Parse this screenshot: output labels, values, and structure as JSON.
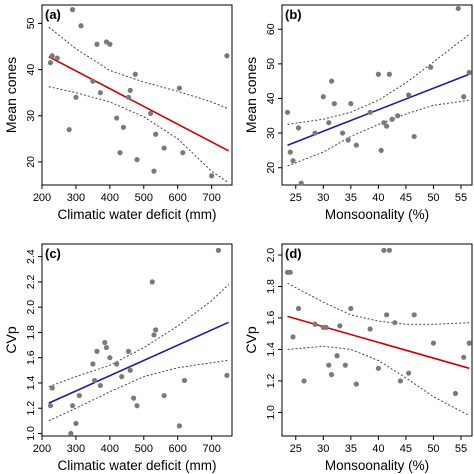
{
  "chart_data": [
    {
      "panel": "(a)",
      "type": "scatter",
      "xlabel": "Climatic water deficit (mm)",
      "ylabel": "Mean cones",
      "xlim": [
        200,
        760
      ],
      "ylim": [
        15,
        54
      ],
      "xticks": [
        200,
        300,
        400,
        500,
        600,
        700
      ],
      "yticks": [
        20,
        30,
        40,
        50
      ],
      "trend_color": "#cc0000",
      "fit": {
        "x": [
          220,
          750
        ],
        "y": [
          42.8,
          22.4
        ]
      },
      "ci_upper": {
        "x": [
          220,
          300,
          400,
          500,
          600,
          700,
          750
        ],
        "y": [
          49.2,
          44.5,
          39.8,
          37.3,
          35.3,
          33.0,
          31.5
        ]
      },
      "ci_lower": {
        "x": [
          220,
          300,
          400,
          500,
          600,
          700,
          750
        ],
        "y": [
          36.3,
          35.0,
          33.0,
          29.8,
          25.0,
          18.0,
          15.5
        ]
      },
      "points": {
        "x": [
          225,
          230,
          245,
          280,
          290,
          300,
          315,
          350,
          362,
          372,
          390,
          400,
          420,
          430,
          440,
          455,
          460,
          475,
          480,
          520,
          530,
          535,
          560,
          605,
          615,
          700,
          745
        ],
        "y": [
          41.5,
          43.0,
          42.5,
          27.0,
          53.0,
          34.0,
          49.5,
          37.5,
          45.5,
          35.0,
          46.0,
          45.5,
          29.5,
          22.0,
          27.5,
          34.0,
          35.5,
          39.0,
          20.5,
          30.5,
          18.0,
          26.0,
          23.0,
          36.0,
          22.0,
          17.0,
          43.0
        ]
      }
    },
    {
      "panel": "(b)",
      "type": "scatter",
      "xlabel": "Monsoonality (%)",
      "ylabel": "Mean cones",
      "xlim": [
        22.5,
        57
      ],
      "ylim": [
        15,
        67
      ],
      "xticks": [
        25,
        30,
        35,
        40,
        45,
        50,
        55
      ],
      "yticks": [
        20,
        30,
        40,
        50,
        60
      ],
      "trend_color": "#1a1aa8",
      "fit": {
        "x": [
          23.5,
          56.5
        ],
        "y": [
          26.5,
          47.0
        ]
      },
      "ci_upper": {
        "x": [
          23.5,
          30,
          35,
          40,
          45,
          50,
          56.5
        ],
        "y": [
          32.5,
          34.0,
          36.0,
          39.5,
          44.5,
          50.5,
          58.5
        ]
      },
      "ci_lower": {
        "x": [
          23.5,
          30,
          35,
          40,
          45,
          50,
          56.5
        ],
        "y": [
          20.5,
          24.5,
          29.0,
          32.5,
          35.5,
          38.0,
          39.5
        ]
      },
      "points": {
        "x": [
          23.5,
          24.0,
          24.5,
          25.5,
          26.0,
          28.5,
          30.0,
          31.0,
          31.5,
          32.0,
          33.5,
          34.5,
          35.0,
          36.0,
          38.5,
          40.0,
          40.5,
          41.0,
          41.5,
          42.0,
          42.5,
          43.5,
          45.5,
          46.5,
          49.5,
          54.5,
          55.5,
          56.5
        ],
        "y": [
          36.0,
          24.5,
          22.0,
          31.5,
          15.5,
          30.0,
          40.5,
          33.0,
          45.0,
          38.5,
          30.0,
          28.0,
          38.5,
          26.5,
          36.0,
          47.0,
          25.0,
          33.0,
          32.0,
          47.0,
          34.0,
          35.0,
          41.0,
          29.0,
          49.0,
          66.0,
          40.5,
          47.5
        ]
      }
    },
    {
      "panel": "(c)",
      "type": "scatter",
      "xlabel": "Climatic water deficit (mm)",
      "ylabel": "CVp",
      "xlim": [
        200,
        760
      ],
      "ylim": [
        0.98,
        2.5
      ],
      "xticks": [
        200,
        300,
        400,
        500,
        600,
        700
      ],
      "yticks": [
        1.0,
        1.2,
        1.4,
        1.6,
        1.8,
        2.0,
        2.2,
        2.4
      ],
      "ytick_labels": [
        "1.0",
        "1.2",
        "1.4",
        "1.6",
        "1.8",
        "2.0",
        "2.2",
        "2.4"
      ],
      "trend_color": "#1a1aa8",
      "fit": {
        "x": [
          220,
          750
        ],
        "y": [
          1.24,
          1.88
        ]
      },
      "ci_upper": {
        "x": [
          220,
          300,
          400,
          500,
          600,
          700,
          750
        ],
        "y": [
          1.37,
          1.45,
          1.54,
          1.68,
          1.85,
          2.05,
          2.18
        ]
      },
      "ci_lower": {
        "x": [
          220,
          300,
          400,
          500,
          600,
          700,
          750
        ],
        "y": [
          1.1,
          1.2,
          1.33,
          1.45,
          1.52,
          1.56,
          1.58
        ]
      },
      "points": {
        "x": [
          225,
          230,
          285,
          290,
          300,
          310,
          350,
          355,
          362,
          372,
          385,
          390,
          400,
          420,
          435,
          455,
          460,
          470,
          480,
          525,
          530,
          535,
          560,
          605,
          620,
          720,
          745
        ],
        "y": [
          1.22,
          1.36,
          1.0,
          1.22,
          1.08,
          1.3,
          1.55,
          1.42,
          1.65,
          1.38,
          1.72,
          1.68,
          1.6,
          1.55,
          1.45,
          1.65,
          1.5,
          1.28,
          1.22,
          2.2,
          1.78,
          1.82,
          1.3,
          1.06,
          1.42,
          2.45,
          1.46
        ]
      }
    },
    {
      "panel": "(d)",
      "type": "scatter",
      "xlabel": "Monsoonality (%)",
      "ylabel": "CVp",
      "xlim": [
        22.5,
        57
      ],
      "ylim": [
        0.85,
        2.07
      ],
      "xticks": [
        25,
        30,
        35,
        40,
        45,
        50,
        55
      ],
      "yticks": [
        1.0,
        1.2,
        1.4,
        1.6,
        1.8,
        2.0
      ],
      "ytick_labels": [
        "1.0",
        "1.2",
        "1.4",
        "1.6",
        "1.8",
        "2.0"
      ],
      "trend_color": "#cc0000",
      "fit": {
        "x": [
          23.5,
          56.5
        ],
        "y": [
          1.61,
          1.28
        ]
      },
      "ci_upper": {
        "x": [
          23.5,
          30,
          35,
          40,
          45,
          50,
          56.5
        ],
        "y": [
          1.82,
          1.7,
          1.62,
          1.58,
          1.56,
          1.56,
          1.57
        ]
      },
      "ci_lower": {
        "x": [
          23.5,
          30,
          35,
          40,
          45,
          50,
          56.5
        ],
        "y": [
          1.4,
          1.42,
          1.4,
          1.33,
          1.22,
          1.1,
          0.98
        ]
      },
      "points": {
        "x": [
          23.5,
          24.0,
          24.5,
          25.5,
          26.5,
          28.5,
          30.0,
          30.5,
          31.0,
          31.5,
          32.5,
          33.0,
          34.0,
          35.0,
          36.0,
          38.5,
          40.0,
          41.0,
          41.5,
          42.0,
          43.0,
          44.0,
          45.5,
          46.5,
          50.0,
          54.0,
          55.5,
          56.5
        ],
        "y": [
          1.89,
          1.89,
          1.48,
          1.66,
          1.2,
          1.56,
          1.54,
          1.54,
          1.3,
          1.24,
          1.36,
          1.55,
          1.3,
          1.66,
          1.18,
          1.53,
          1.28,
          2.03,
          1.62,
          2.03,
          1.57,
          1.2,
          1.25,
          1.62,
          1.44,
          1.12,
          1.35,
          1.44
        ]
      }
    }
  ]
}
